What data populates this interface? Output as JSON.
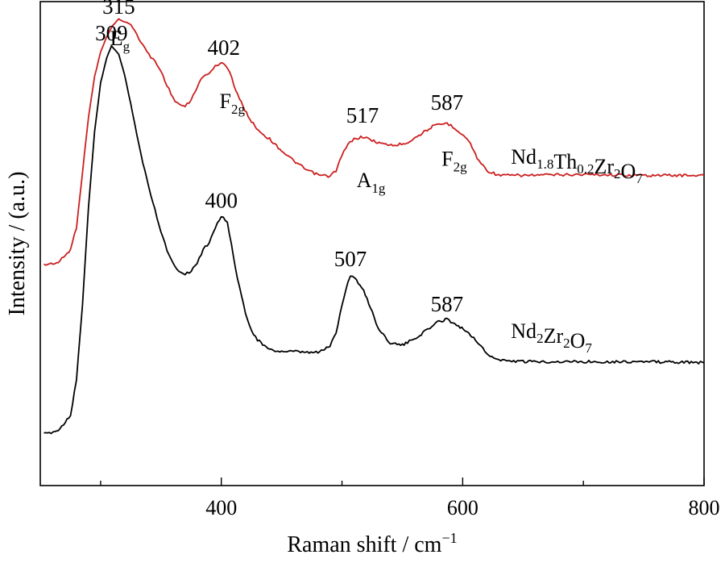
{
  "chart_data": {
    "type": "line",
    "xlabel": "Raman shift / cm",
    "xlabel_superscript": "−1",
    "ylabel": "Intensity / (a.u.)",
    "xlim": [
      250,
      800
    ],
    "ylim": [
      0,
      100
    ],
    "x_major_ticks": [
      400,
      600,
      800
    ],
    "x_minor_ticks": [
      300,
      500,
      700
    ],
    "y_ticks_shown": false,
    "grid": false,
    "series": [
      {
        "name": "Nd1.8Th0.2Zr2O7",
        "label": {
          "base": [
            "Nd",
            "Th",
            "Zr",
            "O"
          ],
          "subs": [
            "1.8",
            "0.2",
            "2",
            "7"
          ],
          "anchor": [
            640,
            68
          ]
        },
        "color": "#cc1f1f",
        "x": [
          253,
          265,
          275,
          280,
          285,
          290,
          295,
          300,
          305,
          310,
          315,
          320,
          325,
          330,
          335,
          340,
          345,
          350,
          355,
          360,
          365,
          370,
          375,
          380,
          385,
          390,
          395,
          402,
          407,
          412,
          418,
          425,
          432,
          440,
          450,
          460,
          470,
          480,
          490,
          495,
          500,
          505,
          510,
          517,
          525,
          535,
          545,
          555,
          565,
          575,
          587,
          595,
          605,
          612,
          620,
          630,
          650,
          700,
          750,
          800
        ],
        "y": [
          45.6,
          46.1,
          48.7,
          53.4,
          64.8,
          76.2,
          84.5,
          89.6,
          92.7,
          95.1,
          96.4,
          95.8,
          95.3,
          93.2,
          91.1,
          89.0,
          87.7,
          85.6,
          82.8,
          80.0,
          78.8,
          78.3,
          79.6,
          82.5,
          84.5,
          85.3,
          86.6,
          87.4,
          85.6,
          81.6,
          78.3,
          75.2,
          73.1,
          71.6,
          69.2,
          67.1,
          65.3,
          64.2,
          63.9,
          65.1,
          68.2,
          70.5,
          71.6,
          72.1,
          71.3,
          70.5,
          70.3,
          71.0,
          72.6,
          74.2,
          74.9,
          73.6,
          71.3,
          67.7,
          65.1,
          64.1,
          64.1,
          64.3,
          64.1,
          64.1
        ]
      },
      {
        "name": "Nd2Zr2O7",
        "label": {
          "base": [
            "Nd",
            "Zr",
            "O"
          ],
          "subs": [
            "2",
            "2",
            "7"
          ],
          "anchor": [
            640,
            32
          ]
        },
        "color": "#000000",
        "x": [
          253,
          265,
          275,
          280,
          285,
          290,
          295,
          300,
          305,
          309,
          315,
          320,
          325,
          330,
          335,
          340,
          345,
          350,
          355,
          360,
          365,
          370,
          375,
          380,
          385,
          390,
          395,
          400,
          405,
          410,
          415,
          420,
          425,
          430,
          440,
          450,
          460,
          470,
          480,
          490,
          495,
          500,
          505,
          507,
          512,
          518,
          525,
          530,
          540,
          550,
          560,
          570,
          580,
          587,
          595,
          605,
          612,
          620,
          630,
          650,
          700,
          750,
          800
        ],
        "y": [
          10.6,
          11.4,
          14.5,
          22.0,
          37.3,
          57.6,
          73.1,
          83.2,
          88.3,
          90.9,
          89.1,
          84.7,
          78.8,
          72.6,
          66.6,
          61.7,
          57.0,
          52.6,
          48.7,
          45.9,
          44.3,
          43.8,
          44.3,
          46.1,
          48.7,
          50.3,
          53.4,
          55.7,
          54.4,
          47.4,
          40.9,
          35.8,
          32.1,
          30.1,
          28.0,
          27.7,
          27.7,
          27.5,
          27.5,
          28.8,
          31.6,
          37.3,
          42.2,
          43.5,
          42.5,
          40.2,
          36.0,
          32.4,
          29.5,
          29.0,
          30.3,
          32.1,
          33.9,
          34.4,
          33.2,
          31.6,
          29.8,
          27.2,
          25.9,
          25.6,
          25.6,
          25.6,
          25.4
        ]
      }
    ],
    "peak_labels": [
      {
        "text": "315",
        "x": 315,
        "y": 99.0
      },
      {
        "text": "309",
        "x": 309,
        "y": 93.5
      },
      {
        "text": "402",
        "x": 402,
        "y": 90.5
      },
      {
        "text": "517",
        "x": 517,
        "y": 76.5
      },
      {
        "text": "587",
        "x": 587,
        "y": 79.2
      },
      {
        "text": "400",
        "x": 400,
        "y": 58.9
      },
      {
        "text": "507",
        "x": 507,
        "y": 46.8
      },
      {
        "text": "587",
        "x": 587,
        "y": 37.5
      }
    ],
    "mode_labels": [
      {
        "base": "E",
        "sub": "g",
        "x": 316,
        "y": 92.5
      },
      {
        "base": "F",
        "sub": "2g",
        "x": 409,
        "y": 79.5
      },
      {
        "base": "A",
        "sub": "1g",
        "x": 524,
        "y": 63.2
      },
      {
        "base": "F",
        "sub": "2g",
        "x": 593,
        "y": 67.6
      }
    ]
  }
}
